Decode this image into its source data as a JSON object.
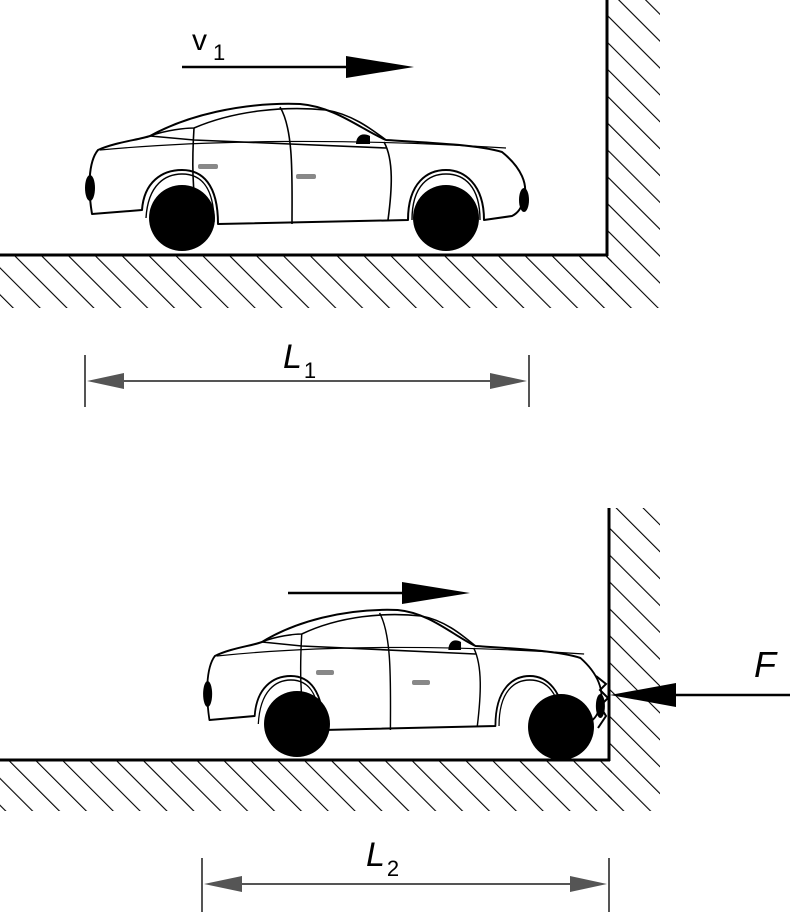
{
  "top_scene": {
    "velocity_label": "v",
    "velocity_subscript": "1",
    "length_label": "L",
    "length_subscript": "1"
  },
  "bottom_scene": {
    "length_label": "L",
    "length_subscript": "2",
    "force_label": "F"
  },
  "colors": {
    "ink": "#000000",
    "dimension_line": "#555555",
    "door_handle": "#888888",
    "background": "#ffffff"
  }
}
